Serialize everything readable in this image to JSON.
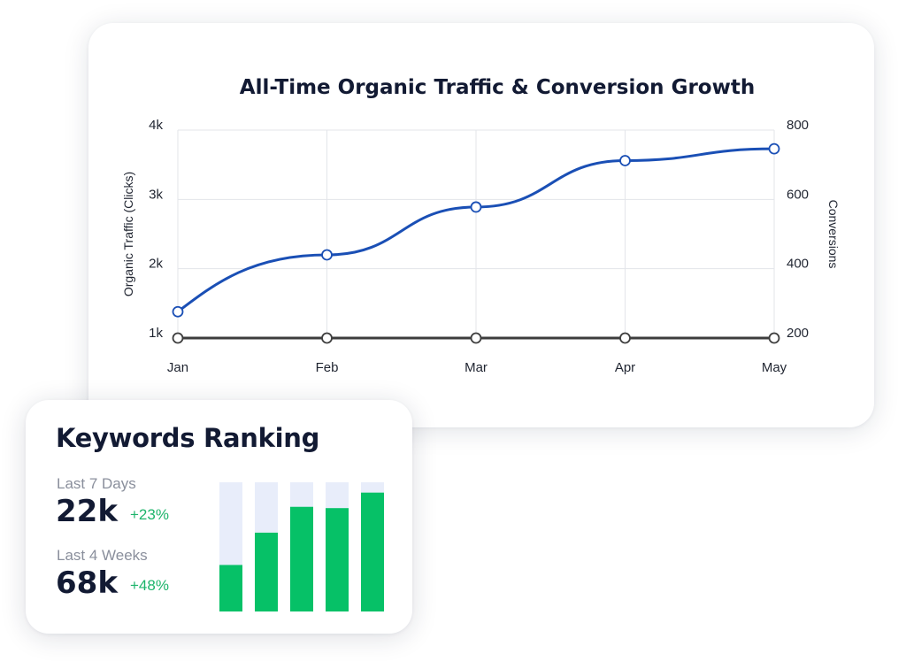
{
  "chart_card": {
    "chart_data": {
      "type": "line",
      "title": "All-Time Organic Traffic & Conversion Growth",
      "categories": [
        "Jan",
        "Feb",
        "Mar",
        "Apr",
        "May"
      ],
      "ylabel_left": "Organic Traffic (Clicks)",
      "ylabel_right": "Conversions",
      "y_left_ticks": [
        "1k",
        "2k",
        "3k",
        "4k"
      ],
      "y_left_range": [
        1000,
        4000
      ],
      "y_right_ticks": [
        "200",
        "400",
        "600",
        "800"
      ],
      "y_right_range": [
        200,
        800
      ],
      "grid": true,
      "series": [
        {
          "axis": "left",
          "color": "#1a4fb5",
          "values": [
            1380,
            2200,
            2890,
            3560,
            3730
          ]
        },
        {
          "axis": "left",
          "color": "#3d3d3d",
          "values": [
            1000,
            1000,
            1000,
            1000,
            1000
          ]
        }
      ]
    }
  },
  "keywords": {
    "title": "Keywords Ranking",
    "stats": [
      {
        "period": "Last 7 Days",
        "value": "22k",
        "change": "+23%"
      },
      {
        "period": "Last 4 Weeks",
        "value": "68k",
        "change": "+48%"
      }
    ],
    "bars": {
      "fill_fractions": [
        0.36,
        0.61,
        0.81,
        0.8,
        0.92
      ],
      "fill_color": "#06c167",
      "track_color": "#e8edfa"
    }
  }
}
